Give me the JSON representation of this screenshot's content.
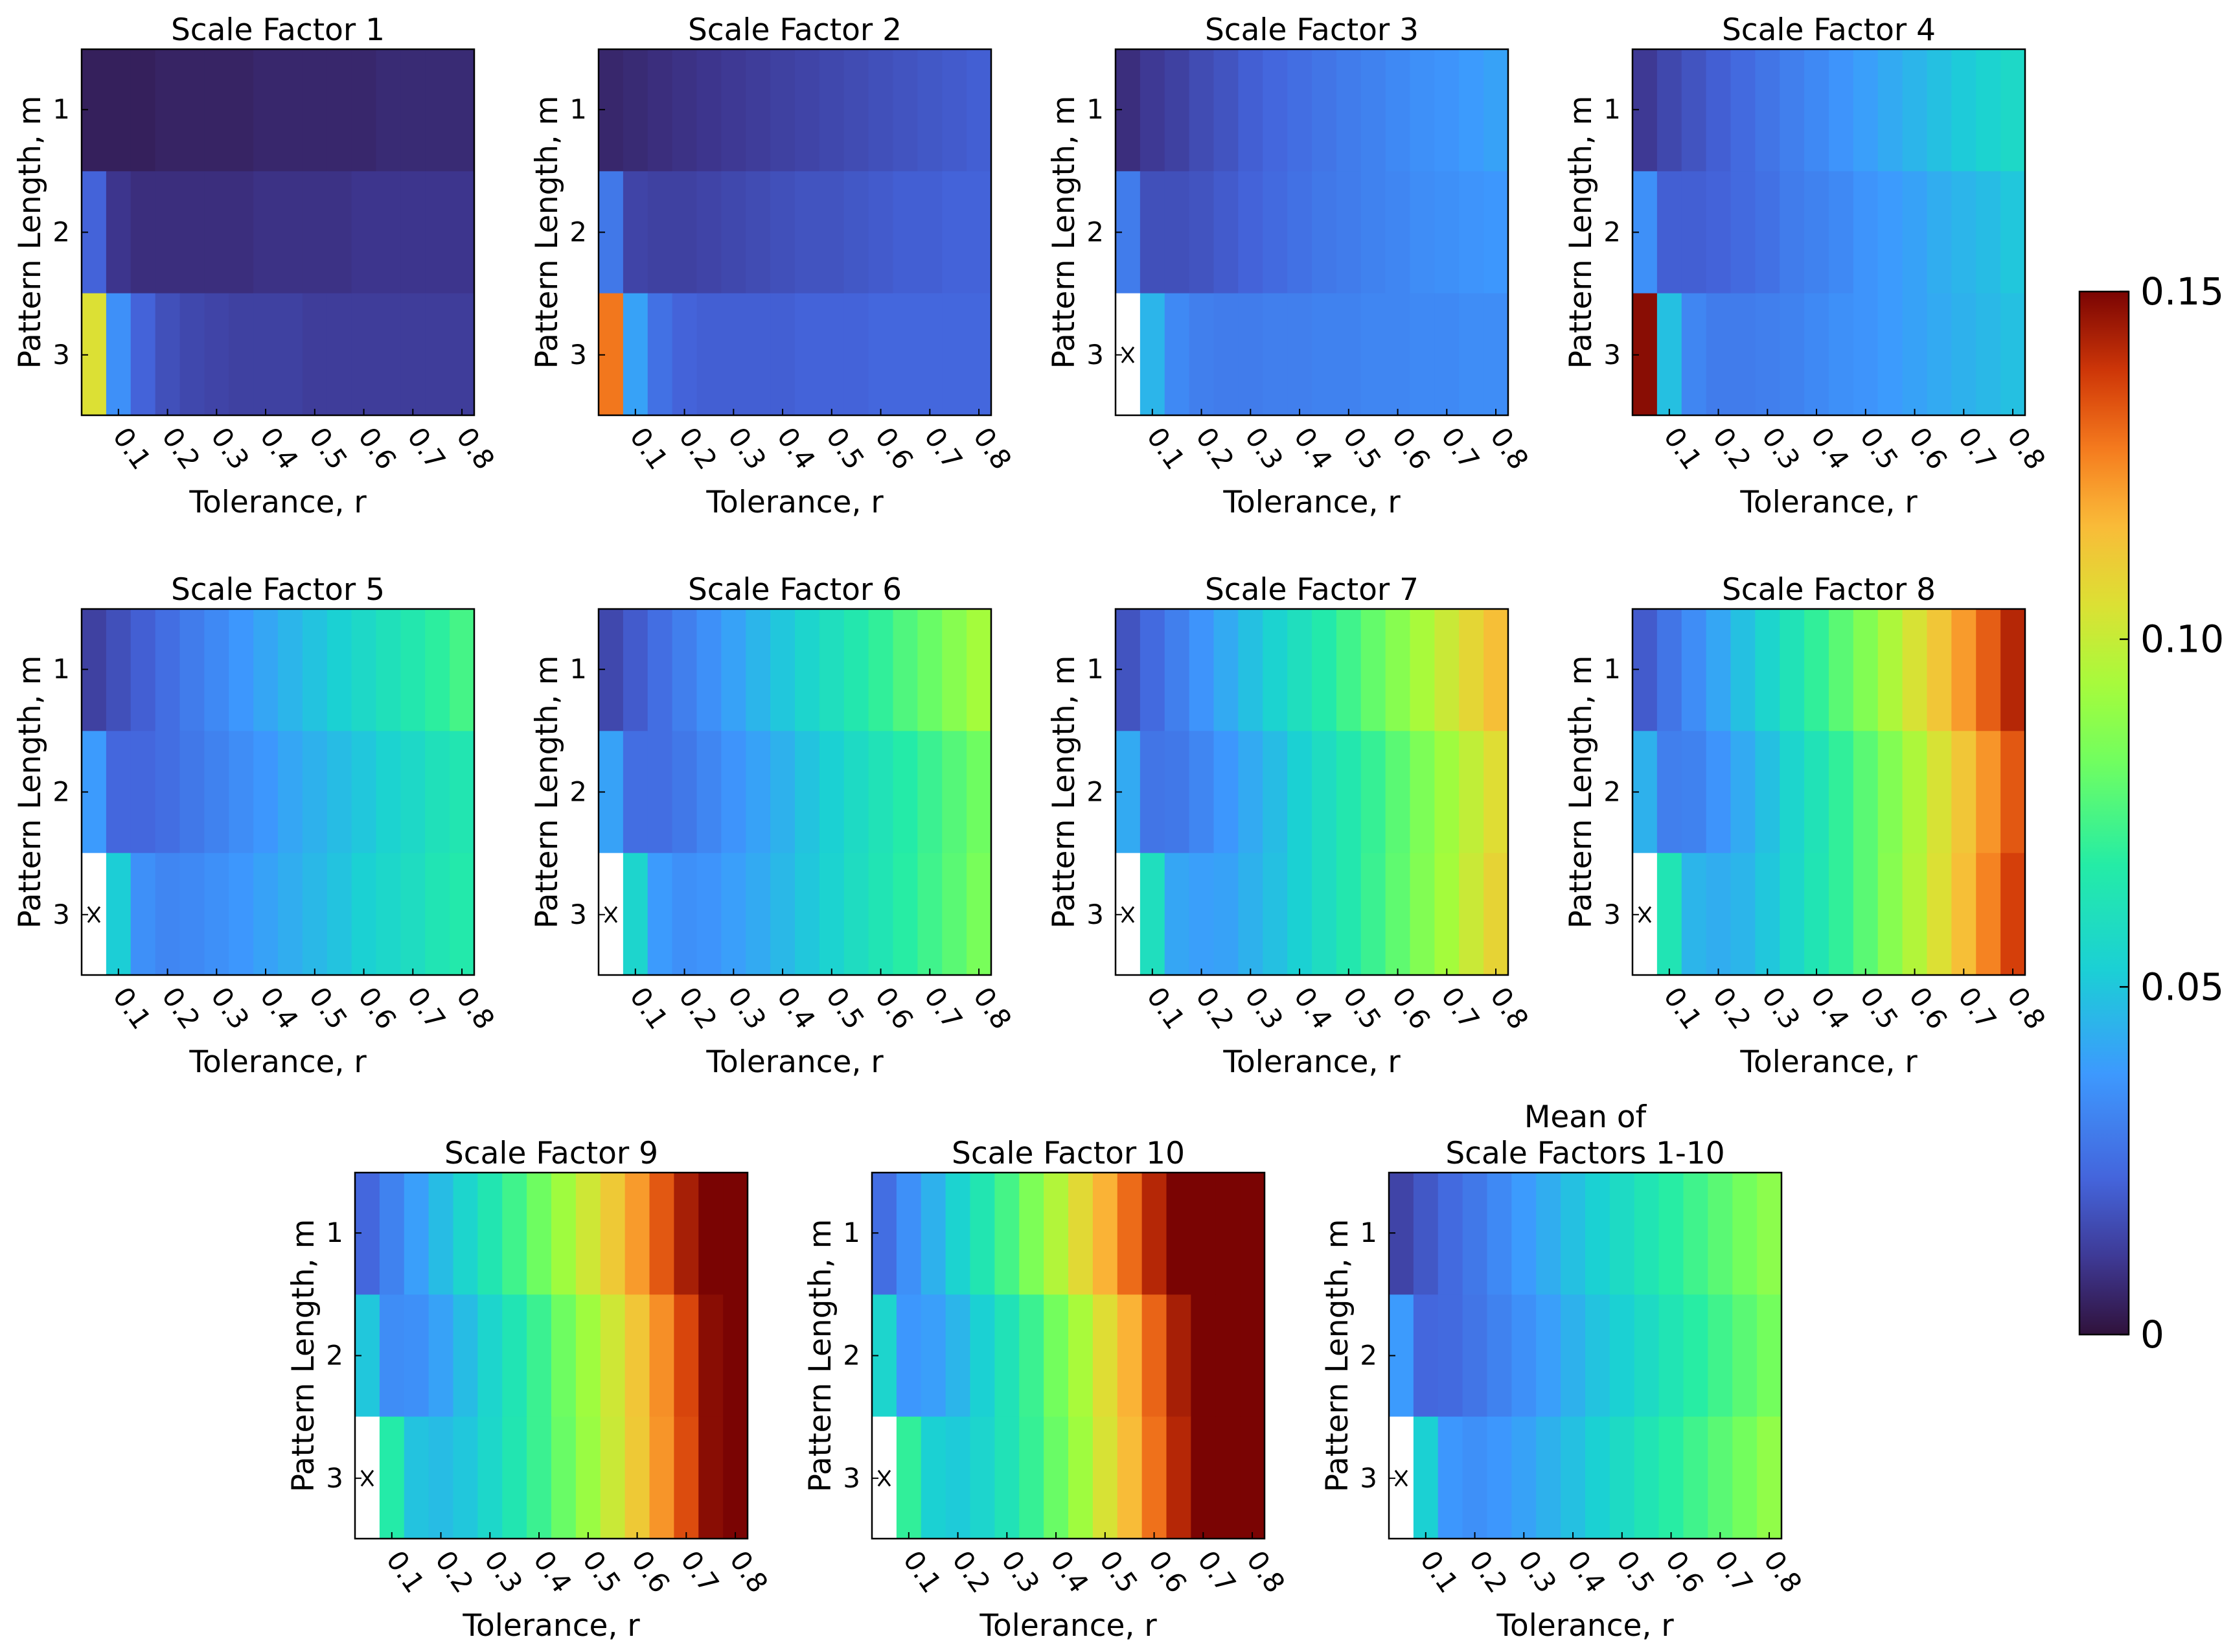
{
  "colorbar": {
    "min": 0,
    "max": 0.15,
    "ticks": [
      {
        "value": 0,
        "label": "0"
      },
      {
        "value": 0.05,
        "label": "0.05"
      },
      {
        "value": 0.1,
        "label": "0.10"
      },
      {
        "value": 0.15,
        "label": "0.15"
      }
    ]
  },
  "chart_data": [
    {
      "type": "heatmap",
      "title": "Scale Factor 1",
      "xlabel": "Tolerance,  r",
      "ylabel": "Pattern Length,  m",
      "x_ticks": [
        "0.1",
        "0.2",
        "0.3",
        "0.4",
        "0.5",
        "0.6",
        "0.7",
        "0.8"
      ],
      "y_ticks": [
        "1",
        "2",
        "3"
      ],
      "x_range": [
        0.05,
        0.8
      ],
      "x_step": 0.05,
      "y_values": [
        1,
        2,
        3
      ],
      "values": [
        [
          0.004,
          0.004,
          0.004,
          0.005,
          0.005,
          0.005,
          0.005,
          0.006,
          0.006,
          0.006,
          0.006,
          0.006,
          0.007,
          0.007,
          0.007,
          0.007
        ],
        [
          0.022,
          0.01,
          0.008,
          0.008,
          0.008,
          0.008,
          0.008,
          0.009,
          0.009,
          0.009,
          0.009,
          0.01,
          0.01,
          0.01,
          0.01,
          0.01
        ],
        [
          0.105,
          0.035,
          0.022,
          0.017,
          0.015,
          0.014,
          0.013,
          0.013,
          0.013,
          0.012,
          0.012,
          0.012,
          0.012,
          0.012,
          0.012,
          0.012
        ]
      ]
    },
    {
      "type": "heatmap",
      "title": "Scale Factor 2",
      "xlabel": "Tolerance,  r",
      "ylabel": "Pattern Length,  m",
      "x_ticks": [
        "0.1",
        "0.2",
        "0.3",
        "0.4",
        "0.5",
        "0.6",
        "0.7",
        "0.8"
      ],
      "y_ticks": [
        "1",
        "2",
        "3"
      ],
      "x_range": [
        0.05,
        0.8
      ],
      "x_step": 0.05,
      "y_values": [
        1,
        2,
        3
      ],
      "values": [
        [
          0.006,
          0.007,
          0.008,
          0.009,
          0.01,
          0.011,
          0.012,
          0.013,
          0.014,
          0.015,
          0.016,
          0.017,
          0.018,
          0.019,
          0.02,
          0.021
        ],
        [
          0.028,
          0.014,
          0.013,
          0.013,
          0.014,
          0.015,
          0.016,
          0.017,
          0.018,
          0.018,
          0.019,
          0.02,
          0.021,
          0.021,
          0.022,
          0.022
        ],
        [
          0.128,
          0.04,
          0.026,
          0.022,
          0.021,
          0.021,
          0.021,
          0.021,
          0.022,
          0.022,
          0.022,
          0.023,
          0.023,
          0.023,
          0.023,
          0.023
        ]
      ]
    },
    {
      "type": "heatmap",
      "title": "Scale Factor 3",
      "xlabel": "Tolerance,  r",
      "ylabel": "Pattern Length,  m",
      "x_ticks": [
        "0.1",
        "0.2",
        "0.3",
        "0.4",
        "0.5",
        "0.6",
        "0.7",
        "0.8"
      ],
      "y_ticks": [
        "1",
        "2",
        "3"
      ],
      "x_range": [
        0.05,
        0.8
      ],
      "x_step": 0.05,
      "y_values": [
        1,
        2,
        3
      ],
      "values": [
        [
          0.008,
          0.011,
          0.013,
          0.016,
          0.018,
          0.021,
          0.023,
          0.025,
          0.027,
          0.029,
          0.031,
          0.033,
          0.035,
          0.036,
          0.038,
          0.04
        ],
        [
          0.029,
          0.017,
          0.017,
          0.018,
          0.02,
          0.022,
          0.024,
          0.026,
          0.028,
          0.029,
          0.031,
          0.032,
          0.034,
          0.035,
          0.036,
          0.037
        ],
        [
          null,
          0.045,
          0.033,
          0.03,
          0.029,
          0.029,
          0.03,
          0.03,
          0.031,
          0.031,
          0.032,
          0.032,
          0.033,
          0.033,
          0.034,
          0.034
        ]
      ]
    },
    {
      "type": "heatmap",
      "title": "Scale Factor 4",
      "xlabel": "Tolerance,  r",
      "ylabel": "Pattern Length,  m",
      "x_ticks": [
        "0.1",
        "0.2",
        "0.3",
        "0.4",
        "0.5",
        "0.6",
        "0.7",
        "0.8"
      ],
      "y_ticks": [
        "1",
        "2",
        "3"
      ],
      "x_range": [
        0.05,
        0.8
      ],
      "x_step": 0.05,
      "y_values": [
        1,
        2,
        3
      ],
      "values": [
        [
          0.011,
          0.015,
          0.018,
          0.021,
          0.024,
          0.027,
          0.03,
          0.033,
          0.036,
          0.039,
          0.042,
          0.045,
          0.048,
          0.051,
          0.054,
          0.057
        ],
        [
          0.035,
          0.021,
          0.021,
          0.022,
          0.024,
          0.026,
          0.029,
          0.031,
          0.033,
          0.036,
          0.038,
          0.04,
          0.043,
          0.045,
          0.047,
          0.05
        ],
        [
          0.148,
          0.048,
          0.032,
          0.029,
          0.029,
          0.03,
          0.031,
          0.033,
          0.035,
          0.036,
          0.038,
          0.04,
          0.042,
          0.044,
          0.046,
          0.048
        ]
      ]
    },
    {
      "type": "heatmap",
      "title": "Scale Factor 5",
      "xlabel": "Tolerance,  r",
      "ylabel": "Pattern Length,  m",
      "x_ticks": [
        "0.1",
        "0.2",
        "0.3",
        "0.4",
        "0.5",
        "0.6",
        "0.7",
        "0.8"
      ],
      "y_ticks": [
        "1",
        "2",
        "3"
      ],
      "x_range": [
        0.05,
        0.8
      ],
      "x_step": 0.05,
      "y_values": [
        1,
        2,
        3
      ],
      "values": [
        [
          0.013,
          0.017,
          0.021,
          0.025,
          0.029,
          0.033,
          0.037,
          0.041,
          0.045,
          0.049,
          0.053,
          0.057,
          0.061,
          0.065,
          0.069,
          0.074
        ],
        [
          0.038,
          0.023,
          0.023,
          0.025,
          0.028,
          0.031,
          0.034,
          0.037,
          0.041,
          0.044,
          0.047,
          0.05,
          0.054,
          0.057,
          0.061,
          0.064
        ],
        [
          null,
          0.052,
          0.035,
          0.032,
          0.033,
          0.035,
          0.037,
          0.04,
          0.043,
          0.046,
          0.049,
          0.053,
          0.056,
          0.059,
          0.063,
          0.066
        ]
      ]
    },
    {
      "type": "heatmap",
      "title": "Scale Factor 6",
      "xlabel": "Tolerance,  r",
      "ylabel": "Pattern Length,  m",
      "x_ticks": [
        "0.1",
        "0.2",
        "0.3",
        "0.4",
        "0.5",
        "0.6",
        "0.7",
        "0.8"
      ],
      "y_ticks": [
        "1",
        "2",
        "3"
      ],
      "x_range": [
        0.05,
        0.8
      ],
      "x_step": 0.05,
      "y_values": [
        1,
        2,
        3
      ],
      "values": [
        [
          0.015,
          0.02,
          0.025,
          0.03,
          0.035,
          0.04,
          0.045,
          0.05,
          0.055,
          0.06,
          0.065,
          0.07,
          0.076,
          0.081,
          0.087,
          0.093
        ],
        [
          0.04,
          0.025,
          0.025,
          0.028,
          0.032,
          0.036,
          0.04,
          0.044,
          0.049,
          0.053,
          0.058,
          0.062,
          0.067,
          0.072,
          0.077,
          0.082
        ],
        [
          null,
          0.055,
          0.038,
          0.035,
          0.036,
          0.039,
          0.042,
          0.046,
          0.05,
          0.054,
          0.059,
          0.063,
          0.068,
          0.073,
          0.078,
          0.084
        ]
      ]
    },
    {
      "type": "heatmap",
      "title": "Scale Factor 7",
      "xlabel": "Tolerance,  r",
      "ylabel": "Pattern Length,  m",
      "x_ticks": [
        "0.1",
        "0.2",
        "0.3",
        "0.4",
        "0.5",
        "0.6",
        "0.7",
        "0.8"
      ],
      "y_ticks": [
        "1",
        "2",
        "3"
      ],
      "x_range": [
        0.05,
        0.8
      ],
      "x_step": 0.05,
      "y_values": [
        1,
        2,
        3
      ],
      "values": [
        [
          0.018,
          0.024,
          0.03,
          0.036,
          0.042,
          0.048,
          0.054,
          0.06,
          0.066,
          0.073,
          0.08,
          0.087,
          0.094,
          0.101,
          0.108,
          0.115
        ],
        [
          0.042,
          0.027,
          0.028,
          0.032,
          0.037,
          0.042,
          0.047,
          0.053,
          0.059,
          0.065,
          0.071,
          0.078,
          0.085,
          0.092,
          0.099,
          0.106
        ],
        [
          null,
          0.06,
          0.041,
          0.039,
          0.04,
          0.044,
          0.048,
          0.053,
          0.059,
          0.065,
          0.072,
          0.079,
          0.086,
          0.093,
          0.101,
          0.109
        ]
      ]
    },
    {
      "type": "heatmap",
      "title": "Scale Factor 8",
      "xlabel": "Tolerance,  r",
      "ylabel": "Pattern Length,  m",
      "x_ticks": [
        "0.1",
        "0.2",
        "0.3",
        "0.4",
        "0.5",
        "0.6",
        "0.7",
        "0.8"
      ],
      "y_ticks": [
        "1",
        "2",
        "3"
      ],
      "x_range": [
        0.05,
        0.8
      ],
      "x_step": 0.05,
      "y_values": [
        1,
        2,
        3
      ],
      "values": [
        [
          0.02,
          0.027,
          0.034,
          0.041,
          0.048,
          0.055,
          0.062,
          0.07,
          0.078,
          0.086,
          0.095,
          0.104,
          0.113,
          0.122,
          0.132,
          0.142
        ],
        [
          0.044,
          0.03,
          0.031,
          0.036,
          0.042,
          0.048,
          0.055,
          0.062,
          0.07,
          0.078,
          0.086,
          0.095,
          0.104,
          0.113,
          0.123,
          0.133
        ],
        [
          null,
          0.063,
          0.045,
          0.043,
          0.045,
          0.05,
          0.056,
          0.063,
          0.07,
          0.078,
          0.087,
          0.096,
          0.105,
          0.115,
          0.126,
          0.137
        ]
      ]
    },
    {
      "type": "heatmap",
      "title": "Scale Factor 9",
      "xlabel": "Tolerance,  r",
      "ylabel": "Pattern Length,  m",
      "x_ticks": [
        "0.1",
        "0.2",
        "0.3",
        "0.4",
        "0.5",
        "0.6",
        "0.7",
        "0.8"
      ],
      "y_ticks": [
        "1",
        "2",
        "3"
      ],
      "x_range": [
        0.05,
        0.8
      ],
      "x_step": 0.05,
      "y_values": [
        1,
        2,
        3
      ],
      "values": [
        [
          0.023,
          0.031,
          0.039,
          0.047,
          0.055,
          0.064,
          0.073,
          0.082,
          0.092,
          0.102,
          0.112,
          0.122,
          0.133,
          0.144,
          0.15,
          0.15
        ],
        [
          0.05,
          0.034,
          0.035,
          0.04,
          0.047,
          0.055,
          0.063,
          0.072,
          0.082,
          0.092,
          0.102,
          0.113,
          0.124,
          0.136,
          0.148,
          0.15
        ],
        [
          null,
          0.067,
          0.049,
          0.047,
          0.05,
          0.056,
          0.064,
          0.072,
          0.081,
          0.091,
          0.101,
          0.112,
          0.123,
          0.135,
          0.148,
          0.15
        ]
      ]
    },
    {
      "type": "heatmap",
      "title": "Scale Factor 10",
      "xlabel": "Tolerance,  r",
      "ylabel": "Pattern Length,  m",
      "x_ticks": [
        "0.1",
        "0.2",
        "0.3",
        "0.4",
        "0.5",
        "0.6",
        "0.7",
        "0.8"
      ],
      "y_ticks": [
        "1",
        "2",
        "3"
      ],
      "x_range": [
        0.05,
        0.8
      ],
      "x_step": 0.05,
      "y_values": [
        1,
        2,
        3
      ],
      "values": [
        [
          0.025,
          0.035,
          0.044,
          0.054,
          0.064,
          0.074,
          0.085,
          0.096,
          0.107,
          0.118,
          0.13,
          0.142,
          0.15,
          0.15,
          0.15,
          0.15
        ],
        [
          0.055,
          0.037,
          0.039,
          0.045,
          0.053,
          0.062,
          0.072,
          0.083,
          0.094,
          0.106,
          0.118,
          0.131,
          0.144,
          0.15,
          0.15,
          0.15
        ],
        [
          null,
          0.07,
          0.053,
          0.051,
          0.055,
          0.062,
          0.071,
          0.081,
          0.092,
          0.104,
          0.116,
          0.129,
          0.142,
          0.15,
          0.15,
          0.15
        ]
      ]
    },
    {
      "type": "heatmap",
      "title": "Mean of\nScale Factors 1-10",
      "xlabel": "Tolerance,  r",
      "ylabel": "Pattern Length,  m",
      "x_ticks": [
        "0.1",
        "0.2",
        "0.3",
        "0.4",
        "0.5",
        "0.6",
        "0.7",
        "0.8"
      ],
      "y_ticks": [
        "1",
        "2",
        "3"
      ],
      "x_range": [
        0.05,
        0.8
      ],
      "x_step": 0.05,
      "y_values": [
        1,
        2,
        3
      ],
      "values": [
        [
          0.014,
          0.019,
          0.024,
          0.028,
          0.033,
          0.038,
          0.043,
          0.048,
          0.053,
          0.058,
          0.063,
          0.068,
          0.073,
          0.078,
          0.083,
          0.088
        ],
        [
          0.038,
          0.023,
          0.024,
          0.027,
          0.031,
          0.035,
          0.039,
          0.044,
          0.049,
          0.053,
          0.058,
          0.063,
          0.068,
          0.073,
          0.078,
          0.083
        ],
        [
          null,
          0.053,
          0.037,
          0.035,
          0.037,
          0.04,
          0.044,
          0.048,
          0.053,
          0.058,
          0.063,
          0.068,
          0.073,
          0.078,
          0.083,
          0.089
        ]
      ]
    }
  ]
}
